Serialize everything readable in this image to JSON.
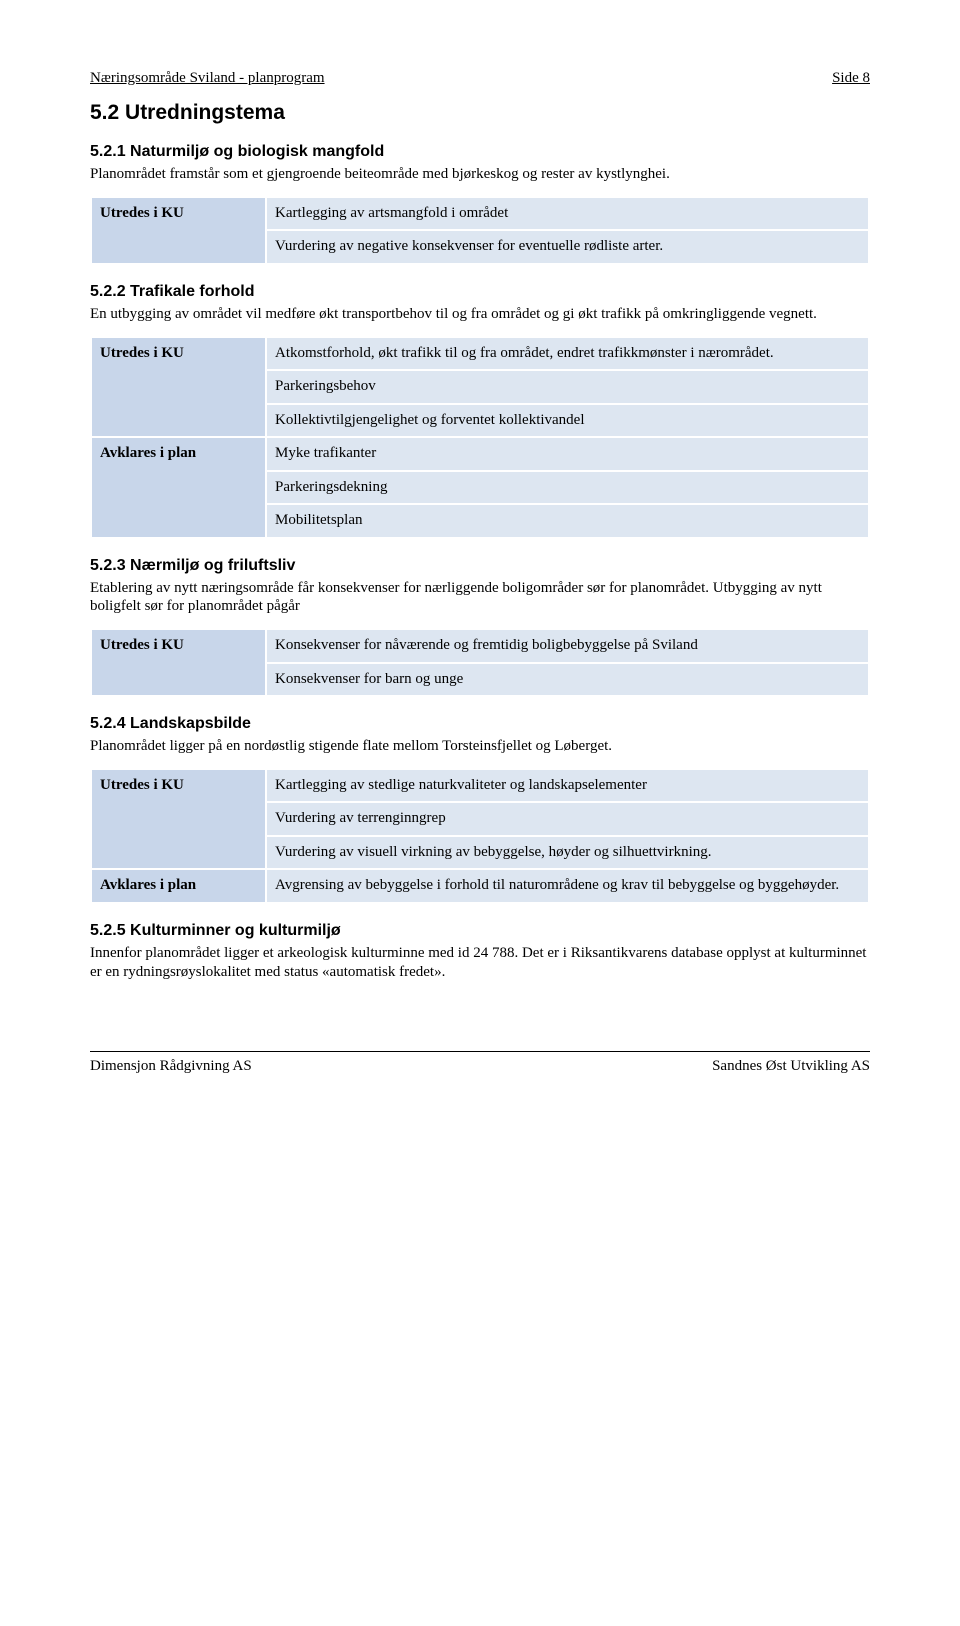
{
  "header": {
    "left": "Næringsområde Sviland - planprogram",
    "right": "Side 8"
  },
  "sections": {
    "s52": {
      "title": "5.2 Utredningstema",
      "s521": {
        "title": "5.2.1 Naturmiljø og biologisk mangfold",
        "para": "Planområdet framstår som et gjengroende beiteområde med bjørkeskog og rester av kystlynghei.",
        "leftLabel": "Utredes i KU",
        "row1": "Kartlegging av artsmangfold i området",
        "row2": "Vurdering av negative konsekvenser for eventuelle rødliste arter."
      },
      "s522": {
        "title": "5.2.2 Trafikale forhold",
        "para": "En utbygging av området vil medføre økt transportbehov til og fra området og gi økt trafikk på omkringliggende vegnett.",
        "left1": "Utredes i KU",
        "row1": "Atkomstforhold, økt trafikk til og fra området, endret trafikkmønster i nærområdet.",
        "row2": "Parkeringsbehov",
        "row3": "Kollektivtilgjengelighet og forventet kollektivandel",
        "left2": "Avklares i plan",
        "row4": "Myke trafikanter",
        "row5": "Parkeringsdekning",
        "row6": "Mobilitetsplan"
      },
      "s523": {
        "title": "5.2.3 Nærmiljø og friluftsliv",
        "para": "Etablering av nytt næringsområde får konsekvenser for nærliggende boligområder sør for planområdet. Utbygging av nytt boligfelt sør for planområdet pågår",
        "leftLabel": "Utredes i KU",
        "row1": "Konsekvenser for nåværende og fremtidig boligbebyggelse på Sviland",
        "row2": "Konsekvenser for barn og unge"
      },
      "s524": {
        "title": "5.2.4 Landskapsbilde",
        "para": "Planområdet ligger på en nordøstlig stigende flate mellom Torsteinsfjellet og Løberget.",
        "left1": "Utredes i KU",
        "row1": "Kartlegging av stedlige naturkvaliteter og landskapselementer",
        "row2": "Vurdering av terrenginngrep",
        "row3": "Vurdering av visuell virkning av bebyggelse, høyder og silhuettvirkning.",
        "left2": "Avklares i plan",
        "row4": "Avgrensing av bebyggelse i forhold til naturområdene og krav til bebyggelse og byggehøyder."
      },
      "s525": {
        "title": "5.2.5 Kulturminner og kulturmiljø",
        "para": "Innenfor planområdet ligger et arkeologisk kulturminne med id 24 788. Det er i Riksantikvarens database opplyst at kulturminnet er en rydningsrøyslokalitet med status «automatisk fredet»."
      }
    }
  },
  "footer": {
    "left": "Dimensjon Rådgivning AS",
    "right": "Sandnes Øst Utvikling AS"
  }
}
